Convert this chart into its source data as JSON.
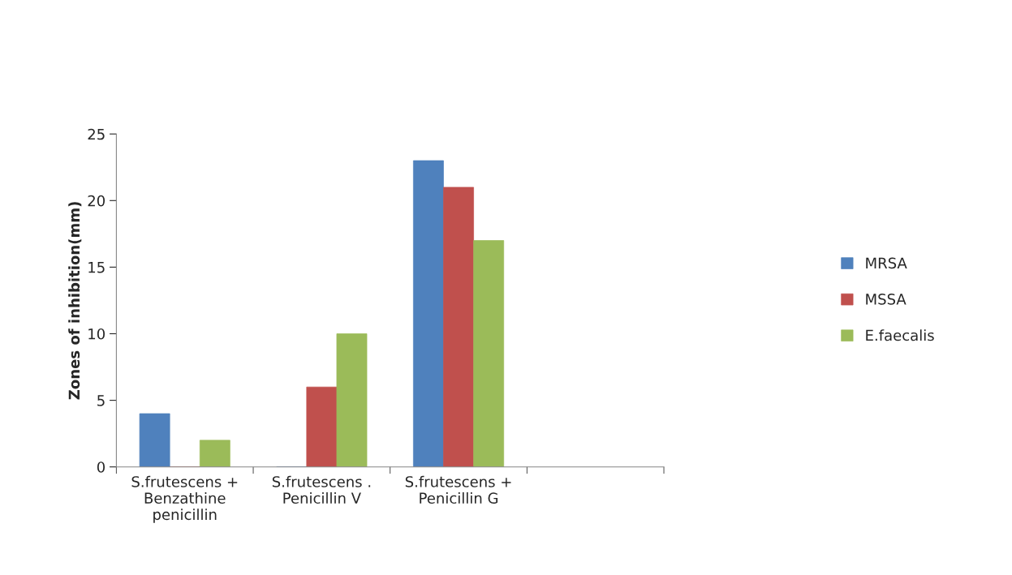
{
  "chart_data": {
    "type": "bar",
    "ylabel": "Zones of inhibition(mm)",
    "categories": [
      "S.frutescens + Benzathine penicillin",
      "S.frutescens . Penicillin V",
      "S.frutescens + Penicillin G",
      null
    ],
    "series": [
      {
        "name": "MRSA",
        "color": "#4f81bd",
        "values": [
          4,
          0,
          23,
          null
        ]
      },
      {
        "name": "MSSA",
        "color": "#c0504d",
        "values": [
          0,
          6,
          21,
          null
        ]
      },
      {
        "name": "E.faecalis",
        "color": "#9bbb59",
        "values": [
          2,
          10,
          17,
          null
        ]
      }
    ],
    "ylim": [
      0,
      25
    ],
    "yticks": [
      0,
      5,
      10,
      15,
      20,
      25
    ],
    "grid": false,
    "legend": "right"
  }
}
